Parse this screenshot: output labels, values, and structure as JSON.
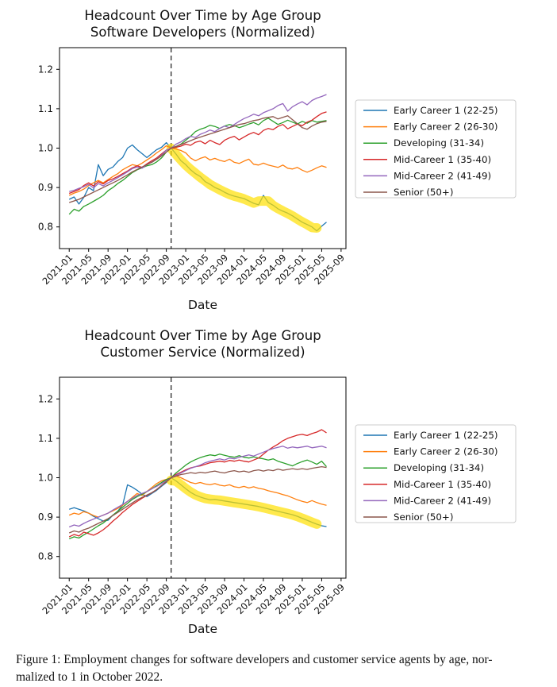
{
  "figure_caption": {
    "line1": "Figure 1: Employment changes for software developers and customer service agents by age, nor-",
    "line2": "malized to 1 in October 2022."
  },
  "chart_data": [
    {
      "type": "line",
      "title_line1": "Headcount Over Time by Age Group",
      "title_line2": "Software Developers (Normalized)",
      "xlabel": "Date",
      "ylabel": "",
      "ylim": [
        0.745,
        1.255
      ],
      "yticks": [
        1.2,
        1.1,
        1.0,
        0.9,
        0.8
      ],
      "xtick_labels": [
        "2021-01",
        "2021-05",
        "2021-09",
        "2022-01",
        "2022-05",
        "2022-09",
        "2023-01",
        "2023-05",
        "2023-09",
        "2024-01",
        "2024-05",
        "2024-09",
        "2025-01",
        "2025-05",
        "2025-09"
      ],
      "x_months": [
        "2021-01",
        "2021-02",
        "2021-03",
        "2021-04",
        "2021-05",
        "2021-06",
        "2021-07",
        "2021-08",
        "2021-09",
        "2021-10",
        "2021-11",
        "2021-12",
        "2022-01",
        "2022-02",
        "2022-03",
        "2022-04",
        "2022-05",
        "2022-06",
        "2022-07",
        "2022-08",
        "2022-09",
        "2022-10",
        "2022-11",
        "2022-12",
        "2023-01",
        "2023-02",
        "2023-03",
        "2023-04",
        "2023-05",
        "2023-06",
        "2023-07",
        "2023-08",
        "2023-09",
        "2023-10",
        "2023-11",
        "2023-12",
        "2024-01",
        "2024-02",
        "2024-03",
        "2024-04",
        "2024-05",
        "2024-06",
        "2024-07",
        "2024-08",
        "2024-09",
        "2024-10",
        "2024-11",
        "2024-12",
        "2025-01",
        "2025-02",
        "2025-03",
        "2025-04",
        "2025-05",
        "2025-06"
      ],
      "vline_month": "2022-10",
      "legend_position": "right",
      "grid": false,
      "highlight": {
        "series": "Early Career 1 (22-25)",
        "from": "2022-10",
        "to": "2025-04",
        "color": "#ffdf00",
        "opacity": 0.7,
        "width": 12
      },
      "series": [
        {
          "name": "Early Career 1 (22-25)",
          "color": "#1f77b4",
          "values": [
            0.87,
            0.876,
            0.858,
            0.875,
            0.9,
            0.892,
            0.958,
            0.93,
            0.946,
            0.952,
            0.966,
            0.976,
            1.0,
            1.008,
            0.996,
            0.986,
            0.976,
            0.986,
            0.996,
            1.002,
            1.014,
            1.0,
            0.985,
            0.968,
            0.958,
            0.945,
            0.935,
            0.928,
            0.915,
            0.908,
            0.9,
            0.895,
            0.888,
            0.882,
            0.878,
            0.875,
            0.872,
            0.866,
            0.86,
            0.856,
            0.88,
            0.862,
            0.855,
            0.846,
            0.84,
            0.835,
            0.828,
            0.82,
            0.812,
            0.806,
            0.8,
            0.79,
            0.802,
            0.812
          ]
        },
        {
          "name": "Early Career 2 (26-30)",
          "color": "#ff7f0e",
          "values": [
            0.88,
            0.886,
            0.89,
            0.896,
            0.905,
            0.912,
            0.918,
            0.912,
            0.92,
            0.928,
            0.935,
            0.945,
            0.952,
            0.958,
            0.955,
            0.962,
            0.97,
            0.978,
            0.988,
            0.996,
            1.006,
            1.0,
            0.998,
            0.994,
            0.988,
            0.975,
            0.968,
            0.974,
            0.978,
            0.97,
            0.974,
            0.969,
            0.966,
            0.972,
            0.964,
            0.961,
            0.967,
            0.972,
            0.959,
            0.957,
            0.962,
            0.957,
            0.954,
            0.951,
            0.957,
            0.949,
            0.947,
            0.951,
            0.944,
            0.939,
            0.944,
            0.95,
            0.955,
            0.951
          ]
        },
        {
          "name": "Developing (31-34)",
          "color": "#2ca02c",
          "values": [
            0.832,
            0.845,
            0.84,
            0.852,
            0.858,
            0.865,
            0.872,
            0.88,
            0.892,
            0.9,
            0.91,
            0.918,
            0.928,
            0.938,
            0.945,
            0.95,
            0.955,
            0.958,
            0.965,
            0.975,
            0.99,
            1.0,
            1.004,
            1.01,
            1.02,
            1.03,
            1.042,
            1.048,
            1.052,
            1.058,
            1.055,
            1.05,
            1.056,
            1.06,
            1.057,
            1.052,
            1.056,
            1.061,
            1.065,
            1.059,
            1.07,
            1.076,
            1.068,
            1.06,
            1.065,
            1.071,
            1.066,
            1.061,
            1.068,
            1.063,
            1.07,
            1.066,
            1.068,
            1.07
          ]
        },
        {
          "name": "Mid-Career 1 (35-40)",
          "color": "#d62728",
          "values": [
            0.885,
            0.89,
            0.895,
            0.905,
            0.912,
            0.904,
            0.915,
            0.909,
            0.918,
            0.922,
            0.928,
            0.935,
            0.942,
            0.95,
            0.955,
            0.951,
            0.96,
            0.968,
            0.975,
            0.985,
            0.995,
            1.0,
            1.002,
            1.005,
            1.01,
            1.007,
            1.015,
            1.018,
            1.011,
            1.02,
            1.014,
            1.009,
            1.02,
            1.026,
            1.03,
            1.021,
            1.028,
            1.035,
            1.04,
            1.034,
            1.045,
            1.05,
            1.047,
            1.055,
            1.06,
            1.049,
            1.055,
            1.061,
            1.057,
            1.066,
            1.071,
            1.08,
            1.088,
            1.092
          ]
        },
        {
          "name": "Mid-Career 2 (41-49)",
          "color": "#9467bd",
          "values": [
            0.89,
            0.893,
            0.898,
            0.902,
            0.908,
            0.899,
            0.91,
            0.904,
            0.912,
            0.918,
            0.925,
            0.932,
            0.94,
            0.948,
            0.952,
            0.949,
            0.958,
            0.965,
            0.972,
            0.982,
            0.995,
            1.0,
            1.01,
            1.016,
            1.024,
            1.03,
            1.027,
            1.035,
            1.04,
            1.046,
            1.042,
            1.05,
            1.056,
            1.052,
            1.06,
            1.068,
            1.075,
            1.08,
            1.086,
            1.082,
            1.09,
            1.095,
            1.1,
            1.108,
            1.113,
            1.094,
            1.105,
            1.112,
            1.118,
            1.11,
            1.121,
            1.127,
            1.131,
            1.136
          ]
        },
        {
          "name": "Senior (50+)",
          "color": "#8c564b",
          "values": [
            0.862,
            0.866,
            0.87,
            0.876,
            0.882,
            0.888,
            0.894,
            0.9,
            0.906,
            0.912,
            0.918,
            0.925,
            0.932,
            0.94,
            0.946,
            0.952,
            0.958,
            0.964,
            0.972,
            0.98,
            0.99,
            1.0,
            1.004,
            1.009,
            1.014,
            1.019,
            1.024,
            1.028,
            1.032,
            1.036,
            1.04,
            1.044,
            1.048,
            1.052,
            1.056,
            1.06,
            1.062,
            1.066,
            1.07,
            1.072,
            1.076,
            1.078,
            1.08,
            1.074,
            1.078,
            1.082,
            1.072,
            1.062,
            1.052,
            1.048,
            1.056,
            1.062,
            1.066,
            1.068
          ]
        }
      ]
    },
    {
      "type": "line",
      "title_line1": "Headcount Over Time by Age Group",
      "title_line2": "Customer Service (Normalized)",
      "xlabel": "Date",
      "ylabel": "",
      "ylim": [
        0.745,
        1.255
      ],
      "yticks": [
        1.2,
        1.1,
        1.0,
        0.9,
        0.8
      ],
      "xtick_labels": [
        "2021-01",
        "2021-05",
        "2021-09",
        "2022-01",
        "2022-05",
        "2022-09",
        "2023-01",
        "2023-05",
        "2023-09",
        "2024-01",
        "2024-05",
        "2024-09",
        "2025-01",
        "2025-05",
        "2025-09"
      ],
      "x_months": [
        "2021-01",
        "2021-02",
        "2021-03",
        "2021-04",
        "2021-05",
        "2021-06",
        "2021-07",
        "2021-08",
        "2021-09",
        "2021-10",
        "2021-11",
        "2021-12",
        "2022-01",
        "2022-02",
        "2022-03",
        "2022-04",
        "2022-05",
        "2022-06",
        "2022-07",
        "2022-08",
        "2022-09",
        "2022-10",
        "2022-11",
        "2022-12",
        "2023-01",
        "2023-02",
        "2023-03",
        "2023-04",
        "2023-05",
        "2023-06",
        "2023-07",
        "2023-08",
        "2023-09",
        "2023-10",
        "2023-11",
        "2023-12",
        "2024-01",
        "2024-02",
        "2024-03",
        "2024-04",
        "2024-05",
        "2024-06",
        "2024-07",
        "2024-08",
        "2024-09",
        "2024-10",
        "2024-11",
        "2024-12",
        "2025-01",
        "2025-02",
        "2025-03",
        "2025-04",
        "2025-05",
        "2025-06"
      ],
      "vline_month": "2022-10",
      "legend_position": "right",
      "grid": false,
      "highlight": {
        "series": "Early Career 1 (22-25)",
        "from": "2022-10",
        "to": "2025-04",
        "color": "#ffdf00",
        "opacity": 0.7,
        "width": 12
      },
      "series": [
        {
          "name": "Early Career 1 (22-25)",
          "color": "#1f77b4",
          "values": [
            0.92,
            0.924,
            0.92,
            0.916,
            0.91,
            0.902,
            0.896,
            0.89,
            0.892,
            0.905,
            0.915,
            0.93,
            0.982,
            0.976,
            0.968,
            0.958,
            0.952,
            0.96,
            0.968,
            0.978,
            0.988,
            1.0,
            0.992,
            0.982,
            0.972,
            0.963,
            0.956,
            0.951,
            0.947,
            0.944,
            0.945,
            0.943,
            0.941,
            0.939,
            0.937,
            0.935,
            0.933,
            0.931,
            0.929,
            0.927,
            0.924,
            0.921,
            0.918,
            0.915,
            0.912,
            0.909,
            0.906,
            0.902,
            0.897,
            0.892,
            0.887,
            0.882,
            0.878,
            0.876
          ]
        },
        {
          "name": "Early Career 2 (26-30)",
          "color": "#ff7f0e",
          "values": [
            0.905,
            0.91,
            0.907,
            0.914,
            0.91,
            0.904,
            0.9,
            0.905,
            0.91,
            0.916,
            0.922,
            0.93,
            0.94,
            0.95,
            0.96,
            0.955,
            0.965,
            0.975,
            0.985,
            0.992,
            0.996,
            1.0,
            1.005,
            1.0,
            0.994,
            0.988,
            0.985,
            0.988,
            0.984,
            0.982,
            0.985,
            0.981,
            0.979,
            0.982,
            0.977,
            0.975,
            0.978,
            0.974,
            0.977,
            0.973,
            0.971,
            0.967,
            0.964,
            0.961,
            0.957,
            0.954,
            0.949,
            0.944,
            0.94,
            0.937,
            0.942,
            0.937,
            0.933,
            0.93
          ]
        },
        {
          "name": "Developing (31-34)",
          "color": "#2ca02c",
          "values": [
            0.845,
            0.85,
            0.847,
            0.855,
            0.862,
            0.87,
            0.878,
            0.885,
            0.895,
            0.905,
            0.915,
            0.925,
            0.935,
            0.945,
            0.952,
            0.958,
            0.965,
            0.972,
            0.98,
            0.988,
            0.995,
            1.0,
            1.012,
            1.022,
            1.032,
            1.04,
            1.046,
            1.051,
            1.055,
            1.058,
            1.056,
            1.06,
            1.057,
            1.054,
            1.052,
            1.056,
            1.052,
            1.05,
            1.053,
            1.05,
            1.048,
            1.045,
            1.048,
            1.042,
            1.038,
            1.034,
            1.03,
            1.036,
            1.041,
            1.045,
            1.04,
            1.034,
            1.042,
            1.028
          ]
        },
        {
          "name": "Mid-Career 1 (35-40)",
          "color": "#d62728",
          "values": [
            0.85,
            0.856,
            0.852,
            0.862,
            0.858,
            0.854,
            0.86,
            0.868,
            0.878,
            0.89,
            0.9,
            0.912,
            0.922,
            0.932,
            0.94,
            0.948,
            0.955,
            0.962,
            0.97,
            0.98,
            0.99,
            1.0,
            1.008,
            1.014,
            1.02,
            1.025,
            1.028,
            1.03,
            1.034,
            1.038,
            1.04,
            1.042,
            1.04,
            1.044,
            1.042,
            1.045,
            1.042,
            1.04,
            1.045,
            1.05,
            1.06,
            1.07,
            1.078,
            1.085,
            1.094,
            1.1,
            1.104,
            1.108,
            1.11,
            1.107,
            1.112,
            1.116,
            1.122,
            1.114
          ]
        },
        {
          "name": "Mid-Career 2 (41-49)",
          "color": "#9467bd",
          "values": [
            0.875,
            0.88,
            0.877,
            0.884,
            0.89,
            0.895,
            0.9,
            0.905,
            0.91,
            0.918,
            0.925,
            0.932,
            0.94,
            0.948,
            0.955,
            0.96,
            0.965,
            0.972,
            0.978,
            0.985,
            0.992,
            1.0,
            1.006,
            1.012,
            1.018,
            1.024,
            1.028,
            1.032,
            1.038,
            1.042,
            1.045,
            1.048,
            1.045,
            1.05,
            1.048,
            1.052,
            1.055,
            1.058,
            1.055,
            1.06,
            1.065,
            1.07,
            1.074,
            1.077,
            1.08,
            1.075,
            1.078,
            1.076,
            1.078,
            1.08,
            1.076,
            1.078,
            1.08,
            1.076
          ]
        },
        {
          "name": "Senior (50+)",
          "color": "#8c564b",
          "values": [
            0.86,
            0.865,
            0.862,
            0.868,
            0.872,
            0.878,
            0.884,
            0.89,
            0.896,
            0.904,
            0.912,
            0.92,
            0.928,
            0.936,
            0.944,
            0.95,
            0.956,
            0.962,
            0.97,
            0.98,
            0.99,
            1.0,
            1.004,
            1.008,
            1.01,
            1.013,
            1.011,
            1.014,
            1.012,
            1.015,
            1.017,
            1.014,
            1.012,
            1.016,
            1.018,
            1.015,
            1.017,
            1.014,
            1.018,
            1.02,
            1.017,
            1.02,
            1.018,
            1.022,
            1.019,
            1.021,
            1.023,
            1.021,
            1.023,
            1.021,
            1.024,
            1.026,
            1.028,
            1.026
          ]
        }
      ]
    }
  ]
}
